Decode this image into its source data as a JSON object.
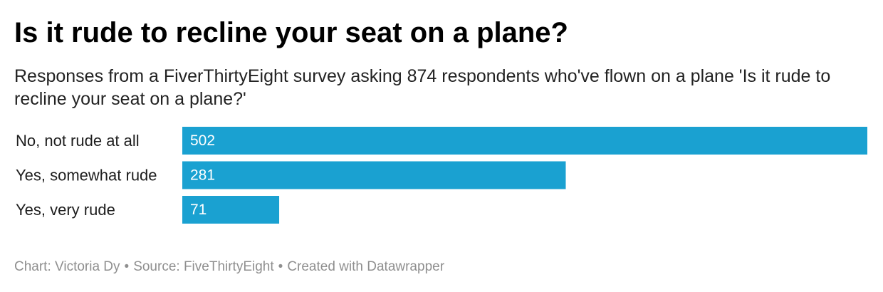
{
  "title": "Is it rude to recline your seat on a plane?",
  "subtitle": "Responses from a FiverThirtyEight survey asking 874 respondents who've flown on a plane 'Is it rude to recline your seat on a plane?'",
  "chart_data": {
    "type": "bar",
    "orientation": "horizontal",
    "title": "Is it rude to recline your seat on a plane?",
    "subtitle": "Responses from a FiverThirtyEight survey asking 874 respondents who've flown on a plane 'Is it rude to recline your seat on a plane?'",
    "categories": [
      "No, not rude at all",
      "Yes, somewhat rude",
      "Yes, very rude"
    ],
    "values": [
      502,
      281,
      71
    ],
    "xlim": [
      0,
      502
    ],
    "grid": false,
    "legend": "none",
    "bar_color": "#1aa1d1",
    "label_color": "#ffffff"
  },
  "footer": {
    "chart_credit": "Chart: Victoria Dy",
    "source": "Source: FiveThirtyEight",
    "created_with": "Created with Datawrapper",
    "separator": "•"
  }
}
